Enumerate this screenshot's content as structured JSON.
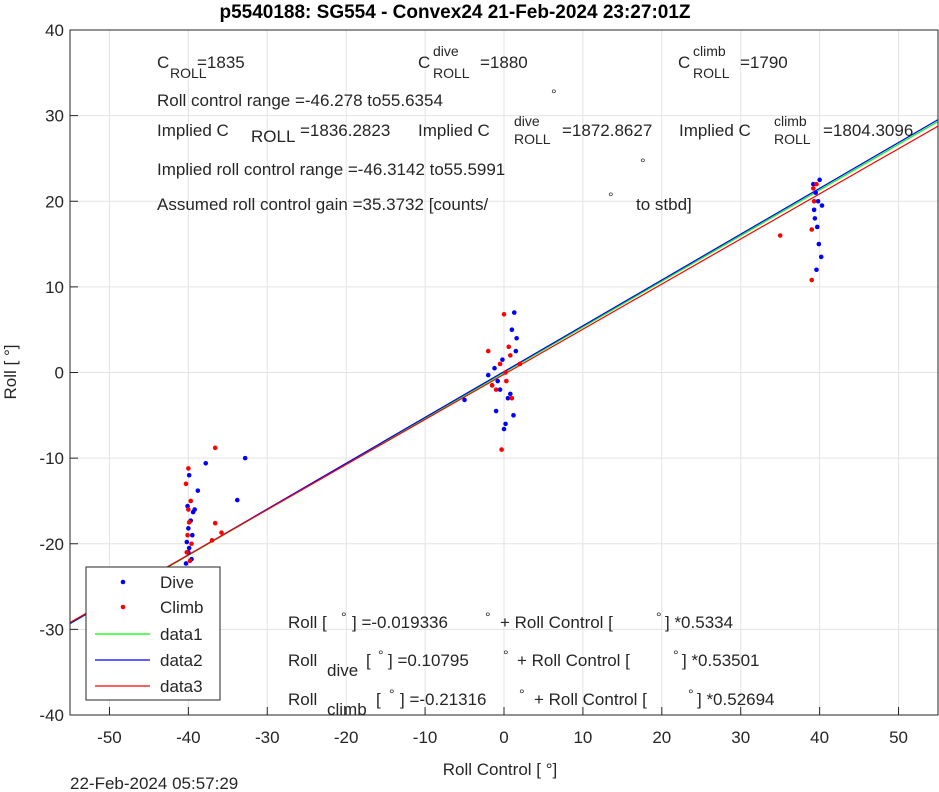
{
  "chart_data": {
    "type": "scatter",
    "title": "p5540188: SG554 - Convex24 21-Feb-2024 23:27:01Z",
    "xlabel": "Roll Control [   °]",
    "ylabel": "Roll [  °]",
    "xlim": [
      -55,
      55
    ],
    "ylim": [
      -40,
      40
    ],
    "xticks": [
      -50,
      -40,
      -30,
      -20,
      -10,
      0,
      10,
      20,
      30,
      40,
      50
    ],
    "yticks": [
      -40,
      -30,
      -20,
      -10,
      0,
      10,
      20,
      30,
      40
    ],
    "grid": true,
    "legend": "lower left",
    "series": [
      {
        "name": "Dive",
        "color": "#0000ff",
        "mode": "markers",
        "x": [
          -40.1,
          -39.8,
          -40.3,
          -39.6,
          -40,
          -39.9,
          -40.2,
          -39.5,
          -40,
          -39.7,
          -39.4,
          -40.1,
          -39.9,
          -38.8,
          -37.8,
          -33.8,
          -32.8,
          -39.2,
          -1.5,
          -1,
          -0.5,
          -0.2,
          0.2,
          0.5,
          1,
          1.3,
          1.5,
          -1.2,
          0.8,
          1.6,
          -0.8,
          -5,
          0,
          1.2,
          -2,
          39.2,
          39.5,
          39.8,
          40,
          40.3,
          39.4,
          39.7,
          39.9,
          40.2,
          39.6,
          39.3
        ],
        "values": [
          -23.5,
          -23,
          -22.3,
          -21.8,
          -21,
          -20.5,
          -19.8,
          -19,
          -18.2,
          -17.3,
          -16.3,
          -15.6,
          -12,
          -13.8,
          -10.6,
          -14.9,
          -10,
          -16,
          -1.5,
          -4.5,
          -2,
          1.5,
          -6,
          -3,
          5,
          7,
          2.5,
          0.5,
          -2.5,
          4,
          -1,
          -3.2,
          -6.6,
          -5,
          -0.3,
          22,
          21,
          20,
          22.5,
          19.5,
          18,
          17,
          15,
          13.5,
          12,
          19
        ]
      },
      {
        "name": "Climb",
        "color": "#ff0000",
        "mode": "markers",
        "x": [
          -40,
          -39.8,
          -40.2,
          -39.6,
          -40.1,
          -39.9,
          -40,
          -39.7,
          -40.3,
          -40,
          -36.6,
          -36.6,
          -37,
          -35.8,
          -2,
          -1,
          -0.5,
          0,
          0.3,
          0.6,
          1,
          2,
          -0.3,
          0.2,
          -1.5,
          0.8,
          35,
          39,
          39,
          39.3,
          39.6,
          39.2
        ],
        "values": [
          -23,
          -22,
          -21,
          -20,
          -19,
          -17.5,
          -16,
          -15,
          -13,
          -11.2,
          -8.8,
          -17.6,
          -19.6,
          -18.7,
          2.5,
          -2,
          1,
          6.8,
          -1,
          3,
          -3,
          1,
          -9,
          0,
          -1.5,
          2,
          16,
          10.8,
          16.7,
          20,
          22,
          21.5
        ]
      },
      {
        "name": "data1",
        "color": "#00ff00",
        "mode": "line",
        "x": [
          -55,
          55
        ],
        "values": [
          -29.356,
          29.318
        ]
      },
      {
        "name": "data2",
        "color": "#0000ff",
        "mode": "line",
        "x": [
          -55,
          55
        ],
        "values": [
          -29.318,
          29.533
        ]
      },
      {
        "name": "data3",
        "color": "#ff0000",
        "mode": "line",
        "x": [
          -55,
          55
        ],
        "values": [
          -29.195,
          28.769
        ]
      }
    ],
    "annotations": [
      "C",
      "ROLL",
      "=1835",
      "C",
      "dive",
      "ROLL",
      "=1880",
      "C",
      "climb",
      "ROLL",
      "=1790",
      "°",
      "Roll control range =-46.278 to55.6354",
      "Implied C",
      "ROLL",
      "=1836.2823",
      "Implied C",
      "dive",
      "ROLL",
      "=1872.8627",
      "Implied C",
      "climb",
      "ROLL",
      "=1804.3096",
      "Implied roll control range =-46.3142 to55.5991",
      "°",
      "Assumed roll control gain =35.3732 [counts/",
      "°",
      "to stbd]",
      "Roll [",
      "°",
      "] =-0.019336",
      "°",
      "+ Roll Control [",
      "°",
      "] *0.5334",
      "Roll",
      "dive",
      "[",
      "°",
      "] =0.10795",
      "°",
      "+ Roll Control [",
      "°",
      "] *0.53501",
      "Roll",
      "climb",
      "[",
      "°",
      "] =-0.21316",
      "°",
      "+ Roll Control [",
      "°",
      "] *0.52694"
    ]
  },
  "timestamp": "22-Feb-2024 05:57:29"
}
